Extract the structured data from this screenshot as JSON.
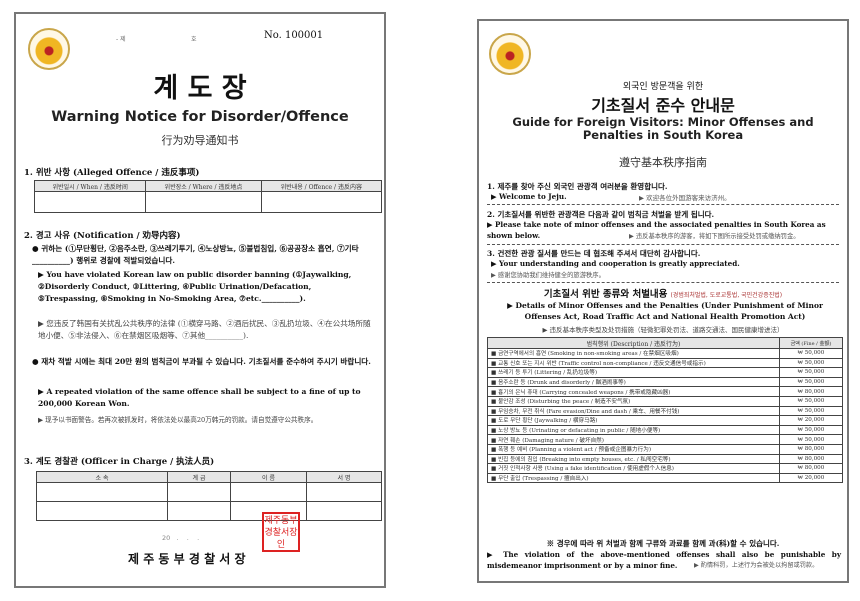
{
  "left": {
    "serial_prefix": "- 제",
    "serial_suffix": "호",
    "number": "No. 100001",
    "title_kr": "계 도 장",
    "title_en": "Warning Notice for Disorder/Offence",
    "title_zh": "行为劝导通知书",
    "s1": "1. 위반 사항 (Alleged Offence / 违反事项)",
    "s1_cols": [
      "위반일시 / When / 违反时间",
      "위반장소 / Where / 违反地点",
      "위반내용 / Offence / 违反内容"
    ],
    "s2": "2. 경고 사유 (Notification / 劝导内容)",
    "kr1": "● 귀하는 (①무단횡단, ②음주소란, ③쓰레기투기, ④노상방뇨, ⑤불법침입, ⑥공공장소 흡연, ⑦기타__________) 행위로 경찰에 적발되었습니다.",
    "en1": "▶ You have violated Korean law on public disorder banning (①Jaywalking, ②Disorderly Conduct, ③Littering, ④Public Urination/Defacation, ⑤Trespassing, ⑥Smoking in No-Smoking Area, ⑦etc.__________).",
    "zh1": "▶ 您违反了韩国有关扰乱公共秩序的法律 (①横穿马路、②酒后扰民、③乱扔垃圾、④在公共场所随地小便、⑤非法侵入、⑥在禁烟区吸烟等、⑦其他__________).",
    "kr2": "● 재차 적발 시에는 최대 20만 원의 범칙금이 부과될 수 있습니다. 기초질서를 준수하여 주시기 바랍니다.",
    "en2": "▶ A repeated violation of the same offence shall be subject to a fine of up to 200,000 Korean Won.",
    "zh2": "▶ 现予以书面警告。若再次被抓发时，将依法处以最高20万韩元的罚款。请自觉遵守公共秩序。",
    "s3": "3. 계도 경찰관 (Officer in Charge / 执法人员)",
    "s3_cols": [
      "소 속",
      "계 급",
      "이 름",
      "서 명"
    ],
    "date": "20   .    .    .",
    "signature": "제 주 동 부 경 찰 서 장",
    "stamp": "제주동부경찰서장인"
  },
  "right": {
    "pre_title": "외국인 방문객을 위한",
    "title_kr": "기초질서 준수 안내문",
    "title_en": "Guide for Foreign Visitors: Minor Offenses and Penalties in South Korea",
    "title_zh": "遵守基本秩序指南",
    "s1_kr": "1. 제주를 찾아 주신 외국인 관광객 여러분을 환영합니다.",
    "s1_en": "▶ Welcome to Jeju.",
    "s1_zh": "▶ 欢迎各位外国游客来访济州。",
    "s2_kr": "2. 기초질서를 위반한 관광객은 다음과 같이 범칙금 처벌을 받게 됩니다.",
    "s2_en": "▶ Please take note of minor offenses and the associated penalties in South Korea as shown below.",
    "s2_zh": "▶ 违反基本秩序的游客，将如下图所示接受处罚或缴纳罚金。",
    "s3_kr": "3. 건전한 관광 질서를 만드는 데 협조해 주셔서 대단히 감사합니다.",
    "s3_en": "▶ Your understanding and cooperation is greatly appreciated.",
    "s3_zh": "▶ 感谢您协助我们维持健全的旅游秩序。",
    "table_title_kr": "기초질서 위반 종류와 처벌내용",
    "table_title_laws": "(경범죄처벌법, 도로교통법, 국민건강증진법)",
    "table_title_en": "▶ Details of Minor Offenses and the Penalties (Under Punishment of Minor Offenses Act, Road Traffic Act and National Health Promotion Act)",
    "table_title_zh": "▶ 违反基本秩序类型及处罚措施（轻微犯罪处罚法、道路交通法、国民健康增进法）",
    "col_desc": "범칙행위 (Description / 违反行为)",
    "col_fine": "금액 (Fine / 金额)",
    "rows": [
      {
        "desc": "■ 금연구역에서의 흡연 (Smoking in non-smoking areas / 在禁烟区吸烟)",
        "fine": "₩ 50,000"
      },
      {
        "desc": "■ 교통 신호 또는 지시 위반 (Traffic control non-compliance / 违反交通信号或指示)",
        "fine": "₩ 50,000"
      },
      {
        "desc": "■ 쓰레기 등 투기 (Littering / 乱扔垃圾等)",
        "fine": "₩ 50,000"
      },
      {
        "desc": "■ 음주소란 등 (Drunk and disorderly / 酗酒闹事等)",
        "fine": "₩ 50,000"
      },
      {
        "desc": "■ 흉기의 은닉 휴대 (Carrying concealed weapons / 携带或隐藏凶器)",
        "fine": "₩ 80,000"
      },
      {
        "desc": "■ 불안감 조성 (Disturbing the peace / 制造不安气氛)",
        "fine": "₩ 50,000"
      },
      {
        "desc": "■ 무임승차, 무전 취식 (Fare evasion/Dine and dash / 乘车、用餐不付钱)",
        "fine": "₩ 50,000"
      },
      {
        "desc": "■ 도로 무단 횡단 (Jaywalking / 横穿马路)",
        "fine": "₩ 20,000"
      },
      {
        "desc": "■ 노상 방뇨 등 (Urinating or defacating in public / 随地小便等)",
        "fine": "₩ 50,000"
      },
      {
        "desc": "■ 자연 훼손 (Damaging nature / 破坏自然)",
        "fine": "₩ 50,000"
      },
      {
        "desc": "■ 폭행 등 예비 (Planning a violent act / 预备或企图暴力行为)",
        "fine": "₩ 80,000"
      },
      {
        "desc": "■ 빈집 등에의 침입 (Breaking into empty houses, etc. / 私闯空宅等)",
        "fine": "₩ 80,000"
      },
      {
        "desc": "■ 거짓 인적사항 사용 (Using a fake identification / 使用虚假个人信息)",
        "fine": "₩ 80,000"
      },
      {
        "desc": "■ 무단 출입 (Trespassing / 擅自出入)",
        "fine": "₩ 20,000"
      }
    ],
    "note_kr": "※ 경우에 따라 위 처벌과 함께 구류와 과료를 함께 과(科)할 수 있습니다.",
    "note_en": "▶ The violation of the above-mentioned offenses shall also be punishable by misdemeanor imprisonment or by a minor fine.",
    "note_zh": "▶ 酌情科罚，上述行为会被处以拘留或罚款。"
  }
}
